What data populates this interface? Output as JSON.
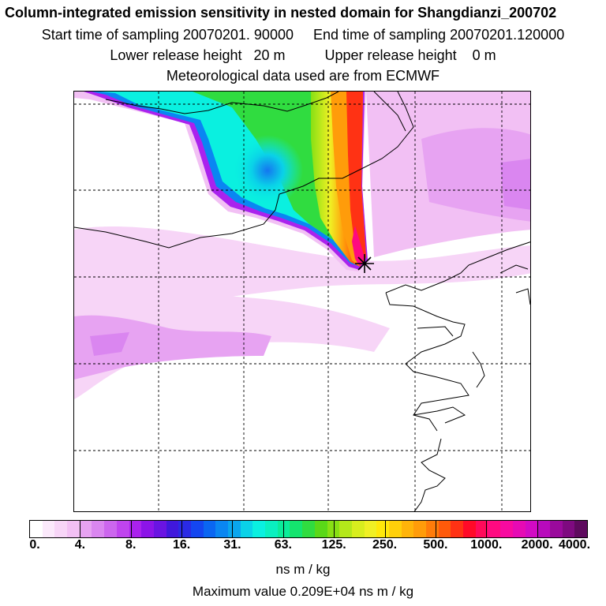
{
  "header": {
    "title": "Column-integrated emission sensitivity in nested domain for Shangdianzi_200702",
    "sampling": "Start time of sampling 20070201. 90000     End time of sampling 20070201.120000",
    "release": "Lower release height   20 m          Upper release height    0 m",
    "met": "Meteorological data used are from ECMWF"
  },
  "map": {
    "layers": [
      "emission-sensitivity-field",
      "coastline",
      "lat-lon-grid",
      "release-site-marker"
    ],
    "marker_icon": "release-site-cross-icon"
  },
  "legend": {
    "tick_labels": [
      "0.",
      "4.",
      "8.",
      "16.",
      "31.",
      "63.",
      "125.",
      "250.",
      "500.",
      "1000.",
      "2000.",
      "4000."
    ],
    "colors": [
      "#ffffff",
      "#fbe9fb",
      "#f7d5f7",
      "#f2c0f4",
      "#e7a3f2",
      "#da86f0",
      "#cc66ee",
      "#bf44ee",
      "#aa22ee",
      "#8c14e8",
      "#6a14e2",
      "#4018dc",
      "#2a2ae4",
      "#1446f0",
      "#0a66f2",
      "#0a86f2",
      "#0aa6ee",
      "#0ad2e8",
      "#0af0e0",
      "#0af0c0",
      "#0aec9a",
      "#14e46e",
      "#30dc40",
      "#5ad818",
      "#88e014",
      "#b4e81a",
      "#d8ee1e",
      "#f0f024",
      "#ffe80a",
      "#ffd00a",
      "#ffb40a",
      "#ff9c0a",
      "#ff7c0a",
      "#ff5a0a",
      "#ff3214",
      "#ff0a28",
      "#ff0a5a",
      "#ff0a80",
      "#f80aa0",
      "#e60ab4",
      "#d20ac4",
      "#b80abc",
      "#9a0a9c",
      "#7e0a80",
      "#5e0a5e"
    ],
    "units": "ns m / kg",
    "max_value": "Maximum value  0.209E+04 ns m / kg"
  }
}
